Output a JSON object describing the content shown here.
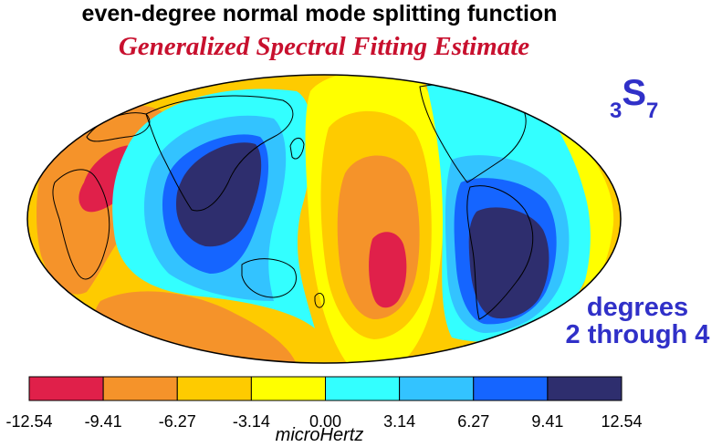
{
  "title": "even-degree normal mode splitting function",
  "subtitle": "Generalized Spectral Fitting Estimate",
  "mode_label": {
    "pre": "3",
    "main": "S",
    "post": "7"
  },
  "degrees_line1": "degrees",
  "degrees_line2": "2 through 4",
  "colorbar": {
    "colors": [
      "#e0204a",
      "#f5932a",
      "#fecb00",
      "#ffff00",
      "#33ffff",
      "#33c3ff",
      "#1565ff",
      "#2e2e6e"
    ],
    "labels": [
      "-12.54",
      "-9.41",
      "-6.27",
      "-3.14",
      "0.00",
      "3.14",
      "6.27",
      "9.41",
      "12.54"
    ],
    "unit": "microHertz"
  },
  "map_colors": {
    "background": "#fecb00",
    "red": "#e0204a",
    "orange": "#f5932a",
    "yellow": "#ffff00",
    "cyan": "#33ffff",
    "lightblue": "#33c3ff",
    "blue": "#1565ff",
    "navy": "#2e2e6e"
  }
}
